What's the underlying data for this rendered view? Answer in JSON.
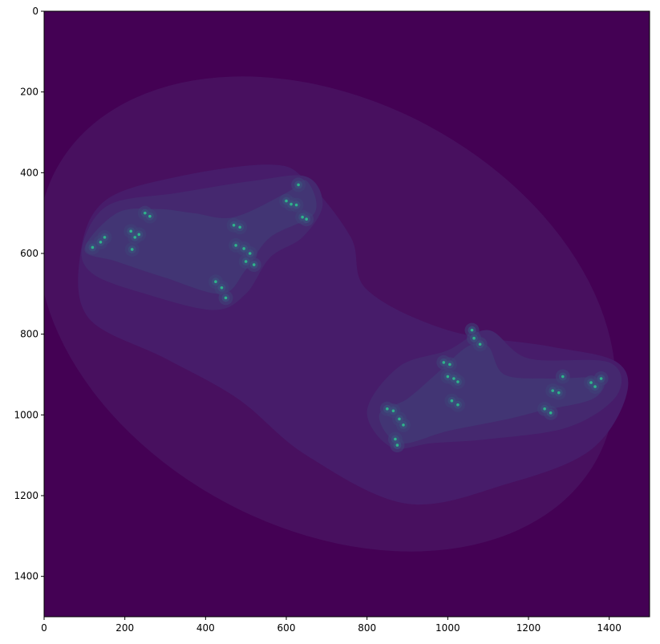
{
  "chart_data": {
    "type": "heatmap",
    "title": "",
    "xlabel": "",
    "ylabel": "",
    "xlim": [
      0,
      1500
    ],
    "ylim": [
      1500,
      0
    ],
    "y_axis_inverted": true,
    "grid": false,
    "legend": "none",
    "colormap": "viridis",
    "x_ticks": [
      0,
      200,
      400,
      600,
      800,
      1000,
      1200,
      1400
    ],
    "y_ticks": [
      0,
      200,
      400,
      600,
      800,
      1000,
      1200,
      1400
    ],
    "x_tick_labels": [
      "0",
      "200",
      "400",
      "600",
      "800",
      "1000",
      "1200",
      "1400"
    ],
    "y_tick_labels": [
      "0",
      "200",
      "400",
      "600",
      "800",
      "1000",
      "1200",
      "1400"
    ],
    "colors": {
      "background": "#440154",
      "level_1": "#48105f",
      "level_2": "#471c6a",
      "level_3": "#45286f",
      "level_4": "#423574",
      "level_5": "#3f4278",
      "level_6": "#3b4f7c",
      "highlight": "#2fb38a"
    },
    "description_levels": [
      {
        "level": 1,
        "shape": "large ellipse",
        "center": [
          700,
          750
        ],
        "rx": 760,
        "ry": 530,
        "rotation_deg": 28
      },
      {
        "level": 2,
        "shape": "blob",
        "path": [
          [
            90,
            600
          ],
          [
            150,
            470
          ],
          [
            330,
            410
          ],
          [
            560,
            380
          ],
          [
            650,
            420
          ],
          [
            760,
            560
          ],
          [
            800,
            690
          ],
          [
            1000,
            790
          ],
          [
            1250,
            830
          ],
          [
            1420,
            870
          ],
          [
            1440,
            960
          ],
          [
            1350,
            1090
          ],
          [
            1150,
            1170
          ],
          [
            900,
            1220
          ],
          [
            650,
            1100
          ],
          [
            480,
            960
          ],
          [
            300,
            860
          ],
          [
            110,
            760
          ]
        ]
      },
      {
        "level": 3,
        "shape": "left lobe",
        "path": [
          [
            95,
            580
          ],
          [
            160,
            480
          ],
          [
            330,
            450
          ],
          [
            520,
            420
          ],
          [
            650,
            410
          ],
          [
            690,
            480
          ],
          [
            640,
            560
          ],
          [
            560,
            610
          ],
          [
            500,
            700
          ],
          [
            420,
            740
          ],
          [
            250,
            700
          ],
          [
            120,
            650
          ]
        ]
      },
      {
        "level": 3,
        "shape": "right lobe",
        "path": [
          [
            800,
            990
          ],
          [
            880,
            880
          ],
          [
            1000,
            840
          ],
          [
            1100,
            790
          ],
          [
            1200,
            860
          ],
          [
            1400,
            870
          ],
          [
            1420,
            950
          ],
          [
            1300,
            1030
          ],
          [
            1100,
            1060
          ],
          [
            960,
            1070
          ],
          [
            860,
            1080
          ]
        ]
      },
      {
        "level": 4,
        "shape": "left inner",
        "path": [
          [
            100,
            590
          ],
          [
            180,
            500
          ],
          [
            280,
            490
          ],
          [
            370,
            500
          ],
          [
            470,
            510
          ],
          [
            600,
            450
          ],
          [
            650,
            420
          ],
          [
            670,
            500
          ],
          [
            560,
            560
          ],
          [
            500,
            640
          ],
          [
            440,
            700
          ],
          [
            300,
            660
          ],
          [
            180,
            620
          ]
        ]
      },
      {
        "level": 4,
        "shape": "right inner",
        "path": [
          [
            830,
            1000
          ],
          [
            900,
            960
          ],
          [
            970,
            900
          ],
          [
            1050,
            830
          ],
          [
            1100,
            830
          ],
          [
            1140,
            900
          ],
          [
            1250,
            910
          ],
          [
            1380,
            910
          ],
          [
            1360,
            960
          ],
          [
            1230,
            990
          ],
          [
            1150,
            1010
          ],
          [
            1000,
            1040
          ],
          [
            880,
            1070
          ]
        ]
      }
    ],
    "highlight_points": [
      [
        120,
        585
      ],
      [
        140,
        572
      ],
      [
        150,
        560
      ],
      [
        215,
        545
      ],
      [
        225,
        560
      ],
      [
        235,
        553
      ],
      [
        218,
        590
      ],
      [
        250,
        500
      ],
      [
        262,
        508
      ],
      [
        470,
        530
      ],
      [
        485,
        535
      ],
      [
        475,
        580
      ],
      [
        495,
        588
      ],
      [
        510,
        600
      ],
      [
        500,
        620
      ],
      [
        520,
        628
      ],
      [
        425,
        670
      ],
      [
        440,
        685
      ],
      [
        450,
        710
      ],
      [
        600,
        470
      ],
      [
        612,
        478
      ],
      [
        625,
        480
      ],
      [
        630,
        430
      ],
      [
        640,
        510
      ],
      [
        650,
        515
      ],
      [
        850,
        985
      ],
      [
        865,
        990
      ],
      [
        880,
        1010
      ],
      [
        890,
        1025
      ],
      [
        870,
        1060
      ],
      [
        875,
        1075
      ],
      [
        990,
        870
      ],
      [
        1005,
        875
      ],
      [
        1000,
        905
      ],
      [
        1015,
        910
      ],
      [
        1025,
        918
      ],
      [
        1010,
        965
      ],
      [
        1025,
        975
      ],
      [
        1060,
        790
      ],
      [
        1065,
        810
      ],
      [
        1080,
        825
      ],
      [
        1240,
        985
      ],
      [
        1255,
        995
      ],
      [
        1260,
        940
      ],
      [
        1275,
        945
      ],
      [
        1285,
        905
      ],
      [
        1355,
        920
      ],
      [
        1365,
        930
      ],
      [
        1380,
        910
      ]
    ]
  }
}
